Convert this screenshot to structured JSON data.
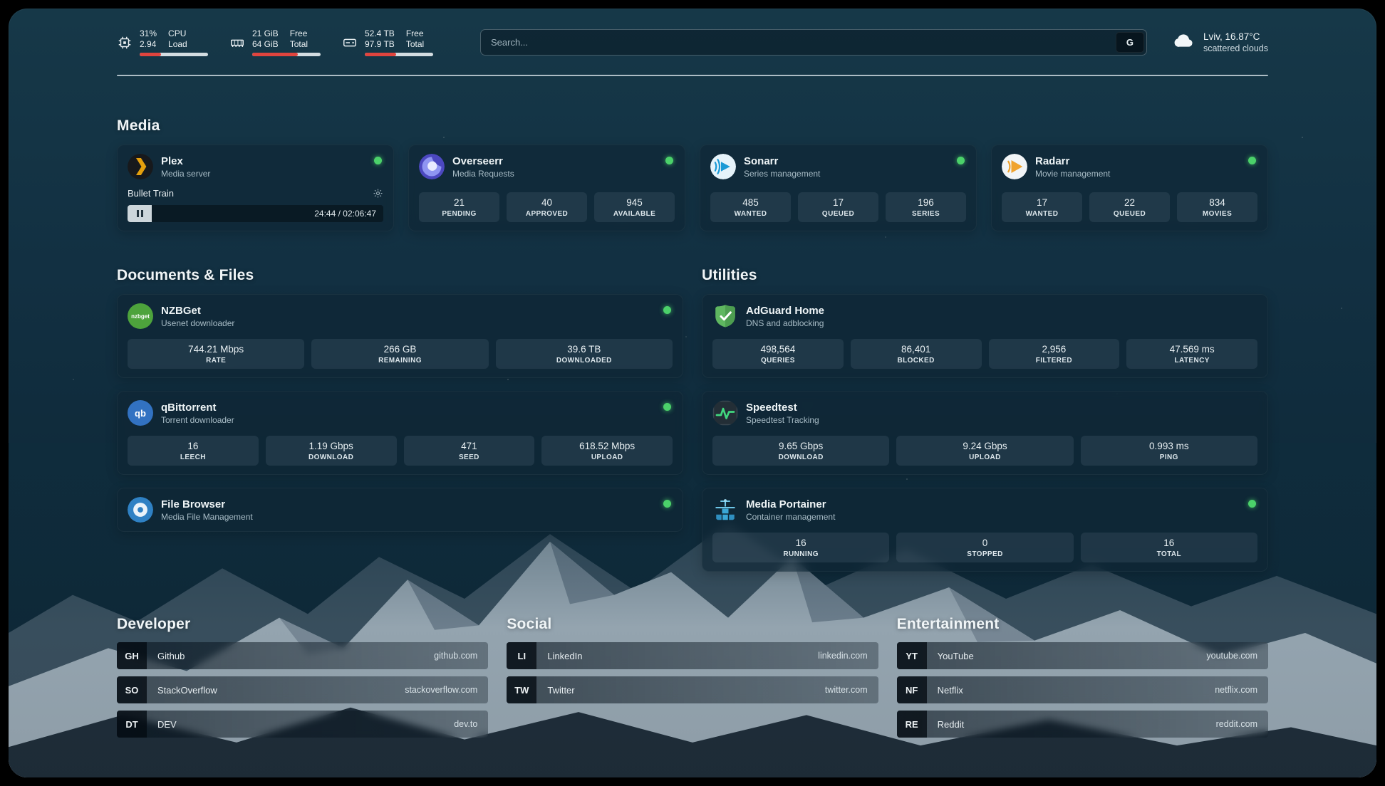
{
  "topbar": {
    "cpu": {
      "value1": "31%",
      "value2": "2.94",
      "label1": "CPU",
      "label2": "Load",
      "bar": 31
    },
    "ram": {
      "value1": "21 GiB",
      "value2": "64 GiB",
      "label1": "Free",
      "label2": "Total",
      "bar": 67
    },
    "disk": {
      "value1": "52.4 TB",
      "value2": "97.9 TB",
      "label1": "Free",
      "label2": "Total",
      "bar": 46
    },
    "search": {
      "placeholder": "Search...",
      "engine_label": "G"
    },
    "weather": {
      "location": "Lviv, 16.87°C",
      "condition": "scattered clouds"
    }
  },
  "sections": {
    "media": {
      "title": "Media",
      "plex": {
        "name": "Plex",
        "subtitle": "Media server",
        "now_playing": "Bullet Train",
        "time": "24:44 / 02:06:47"
      },
      "overseerr": {
        "name": "Overseerr",
        "subtitle": "Media Requests",
        "stats": [
          {
            "value": "21",
            "label": "PENDING"
          },
          {
            "value": "40",
            "label": "APPROVED"
          },
          {
            "value": "945",
            "label": "AVAILABLE"
          }
        ]
      },
      "sonarr": {
        "name": "Sonarr",
        "subtitle": "Series management",
        "stats": [
          {
            "value": "485",
            "label": "WANTED"
          },
          {
            "value": "17",
            "label": "QUEUED"
          },
          {
            "value": "196",
            "label": "SERIES"
          }
        ]
      },
      "radarr": {
        "name": "Radarr",
        "subtitle": "Movie management",
        "stats": [
          {
            "value": "17",
            "label": "WANTED"
          },
          {
            "value": "22",
            "label": "QUEUED"
          },
          {
            "value": "834",
            "label": "MOVIES"
          }
        ]
      }
    },
    "documents": {
      "title": "Documents & Files",
      "nzbget": {
        "name": "NZBGet",
        "subtitle": "Usenet downloader",
        "icon_text": "nzbget",
        "stats": [
          {
            "value": "744.21 Mbps",
            "label": "RATE"
          },
          {
            "value": "266 GB",
            "label": "REMAINING"
          },
          {
            "value": "39.6 TB",
            "label": "DOWNLOADED"
          }
        ]
      },
      "qbittorrent": {
        "name": "qBittorrent",
        "subtitle": "Torrent downloader",
        "icon_text": "qb",
        "stats": [
          {
            "value": "16",
            "label": "LEECH"
          },
          {
            "value": "1.19 Gbps",
            "label": "DOWNLOAD"
          },
          {
            "value": "471",
            "label": "SEED"
          },
          {
            "value": "618.52 Mbps",
            "label": "UPLOAD"
          }
        ]
      },
      "filebrowser": {
        "name": "File Browser",
        "subtitle": "Media File Management"
      }
    },
    "utilities": {
      "title": "Utilities",
      "adguard": {
        "name": "AdGuard Home",
        "subtitle": "DNS and adblocking",
        "stats": [
          {
            "value": "498,564",
            "label": "QUERIES"
          },
          {
            "value": "86,401",
            "label": "BLOCKED"
          },
          {
            "value": "2,956",
            "label": "FILTERED"
          },
          {
            "value": "47.569 ms",
            "label": "LATENCY"
          }
        ]
      },
      "speedtest": {
        "name": "Speedtest",
        "subtitle": "Speedtest Tracking",
        "stats": [
          {
            "value": "9.65 Gbps",
            "label": "DOWNLOAD"
          },
          {
            "value": "9.24 Gbps",
            "label": "UPLOAD"
          },
          {
            "value": "0.993 ms",
            "label": "PING"
          }
        ]
      },
      "portainer": {
        "name": "Media Portainer",
        "subtitle": "Container management",
        "stats": [
          {
            "value": "16",
            "label": "RUNNING"
          },
          {
            "value": "0",
            "label": "STOPPED"
          },
          {
            "value": "16",
            "label": "TOTAL"
          }
        ]
      }
    },
    "developer": {
      "title": "Developer",
      "links": [
        {
          "abbr": "GH",
          "name": "Github",
          "url": "github.com"
        },
        {
          "abbr": "SO",
          "name": "StackOverflow",
          "url": "stackoverflow.com"
        },
        {
          "abbr": "DT",
          "name": "DEV",
          "url": "dev.to"
        }
      ]
    },
    "social": {
      "title": "Social",
      "links": [
        {
          "abbr": "LI",
          "name": "LinkedIn",
          "url": "linkedin.com"
        },
        {
          "abbr": "TW",
          "name": "Twitter",
          "url": "twitter.com"
        }
      ]
    },
    "entertainment": {
      "title": "Entertainment",
      "links": [
        {
          "abbr": "YT",
          "name": "YouTube",
          "url": "youtube.com"
        },
        {
          "abbr": "NF",
          "name": "Netflix",
          "url": "netflix.com"
        },
        {
          "abbr": "RE",
          "name": "Reddit",
          "url": "reddit.com"
        }
      ]
    }
  },
  "colors": {
    "status_online": "#4bd16a",
    "usage_bar_fill": "#e0443e",
    "usage_bar_track": "#d3dce1",
    "plex_accent": "#e5a00d",
    "overseerr_accent": "#4c48c0",
    "sonarr_accent": "#1b9ad6",
    "radarr_accent": "#f0a32e",
    "nzbget_accent": "#4da33c",
    "qbittorrent_accent": "#3272c2",
    "adguard_accent": "#5fb760",
    "speedtest_accent": "#41d87f",
    "portainer_accent": "#3aa7d6",
    "filebrowser_accent": "#2f81c4"
  }
}
